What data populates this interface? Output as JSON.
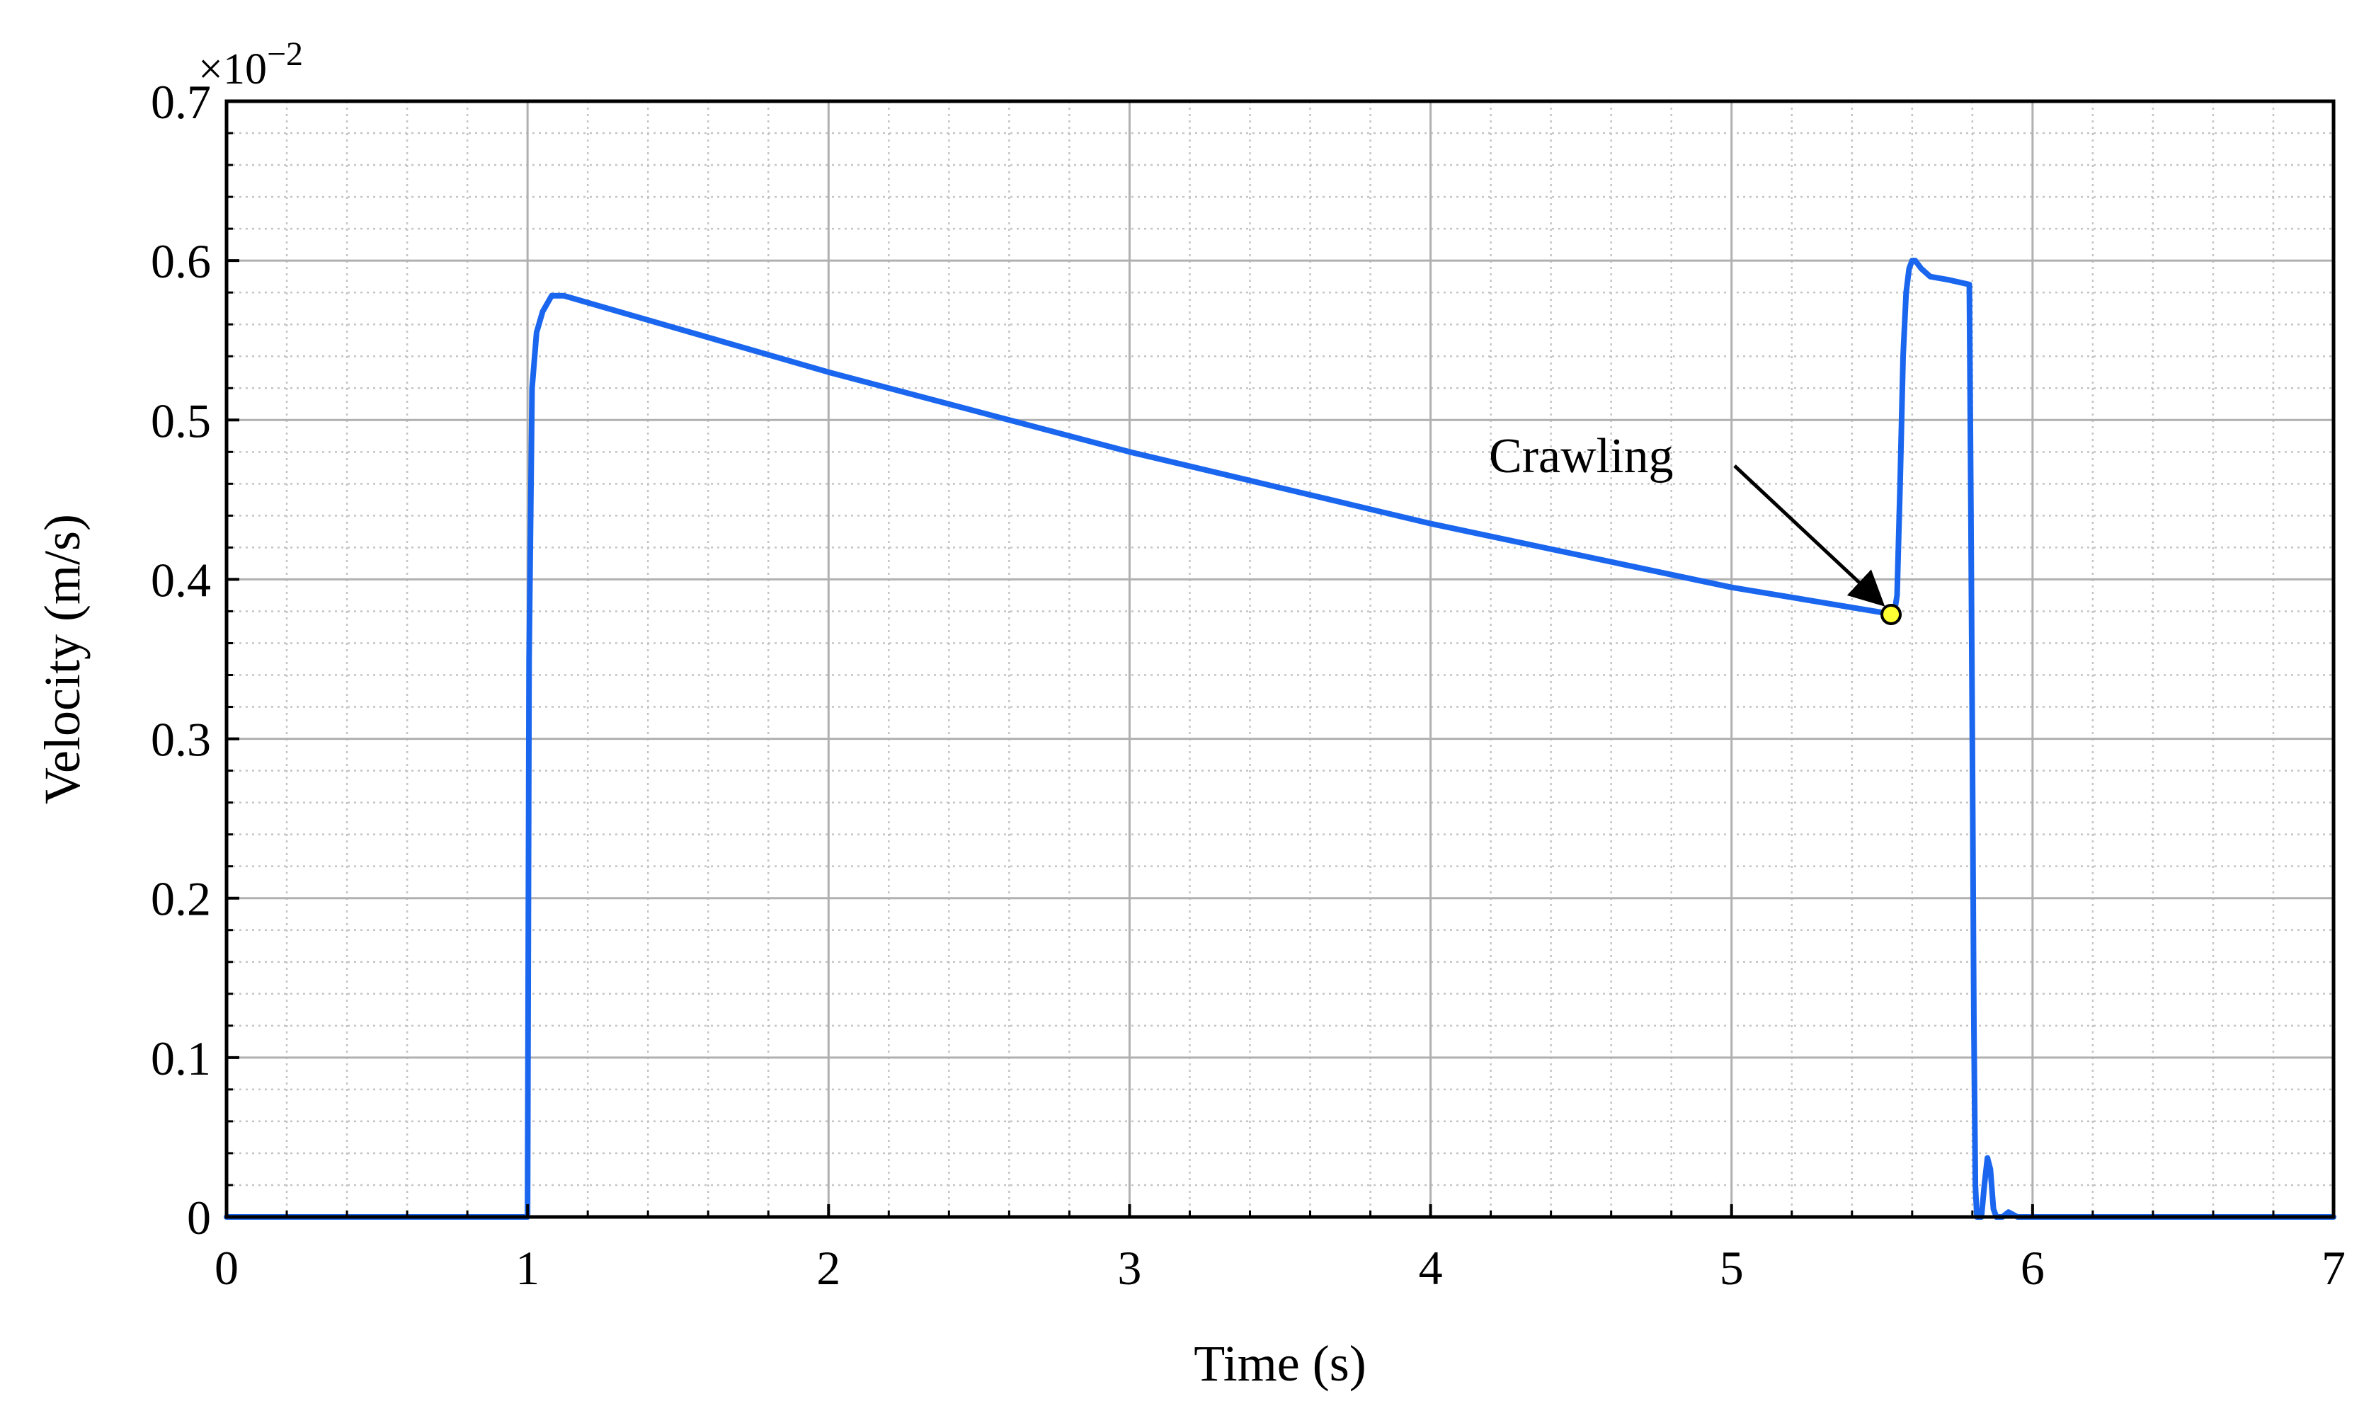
{
  "chart_data": {
    "type": "line",
    "title": "",
    "xlabel": "Time (s)",
    "ylabel": "Velocity (m/s)",
    "xlim": [
      0,
      7
    ],
    "ylim": [
      0,
      0.7
    ],
    "x_ticks": [
      "0",
      "1",
      "2",
      "3",
      "4",
      "5",
      "6",
      "7"
    ],
    "y_ticks": [
      "0",
      "0.1",
      "0.2",
      "0.3",
      "0.4",
      "0.5",
      "0.6",
      "0.7"
    ],
    "y_multiplier": {
      "base": "×10",
      "exponent": "−2"
    },
    "grid": {
      "major": true,
      "minor": true
    },
    "legend": "none",
    "series_color": "#1a66ee",
    "series": [
      {
        "x": [
          0,
          0.99,
          1.0,
          1.005,
          1.015,
          1.03,
          1.05,
          1.08,
          1.12,
          2.0,
          3.0,
          4.0,
          5.0,
          5.54,
          5.55,
          5.56,
          5.57,
          5.58,
          5.59,
          5.6,
          5.61,
          5.63,
          5.66,
          5.72,
          5.79,
          5.795,
          5.8,
          5.805,
          5.81,
          5.815,
          5.82,
          5.83,
          5.84,
          5.85,
          5.86,
          5.87,
          5.88,
          5.9,
          5.92,
          5.95,
          6.0,
          7.0
        ],
        "y": [
          0,
          0,
          0.0,
          0.35,
          0.52,
          0.555,
          0.568,
          0.578,
          0.578,
          0.53,
          0.48,
          0.435,
          0.395,
          0.378,
          0.39,
          0.46,
          0.54,
          0.58,
          0.595,
          0.6,
          0.6,
          0.595,
          0.59,
          0.588,
          0.585,
          0.45,
          0.3,
          0.12,
          0.02,
          0.0,
          0.0,
          0.0,
          0.02,
          0.037,
          0.03,
          0.005,
          0.0,
          0.0,
          0.003,
          0.0,
          0.0,
          0.0
        ]
      }
    ],
    "annotations": [
      {
        "text": "Crawling",
        "point": [
          5.53,
          0.378
        ],
        "marker_color": "#ffff33"
      }
    ]
  }
}
